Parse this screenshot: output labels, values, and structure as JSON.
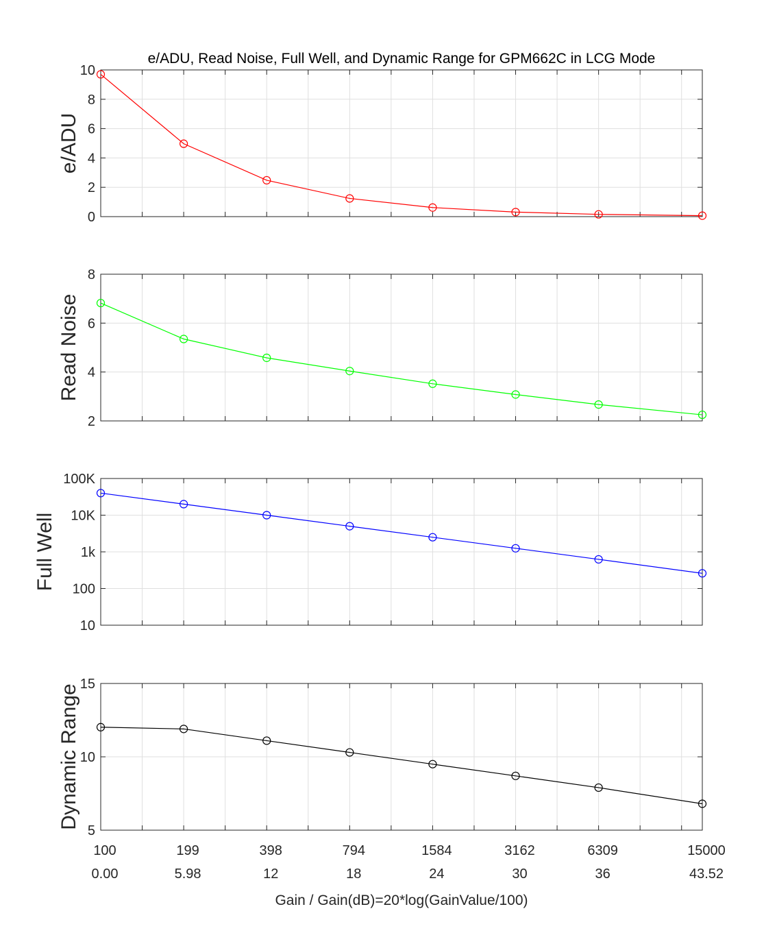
{
  "title": "e/ADU, Read Noise, Full Well, and Dynamic Range for GPM662C in LCG Mode",
  "xlabel": "Gain / Gain(dB)=20*log(GainValue/100)",
  "chart_data": [
    {
      "type": "line",
      "ylabel": "e/ADU",
      "color": "#ff0000",
      "scale": "linear",
      "ylim": [
        0,
        10
      ],
      "yticks": [
        0,
        2,
        4,
        6,
        8,
        10
      ],
      "yticklabels": [
        "0",
        "2",
        "4",
        "6",
        "8",
        "10"
      ],
      "grid": true,
      "gain": [
        100,
        199,
        398,
        794,
        1584,
        3162,
        6309,
        15000
      ],
      "values": [
        9.7,
        4.97,
        2.48,
        1.24,
        0.62,
        0.31,
        0.155,
        0.065
      ]
    },
    {
      "type": "line",
      "ylabel": "Read Noise",
      "color": "#00ff00",
      "scale": "linear",
      "ylim": [
        2,
        8
      ],
      "yticks": [
        2,
        4,
        6,
        8
      ],
      "yticklabels": [
        "2",
        "4",
        "6",
        "8"
      ],
      "grid": true,
      "gain": [
        100,
        199,
        398,
        794,
        1584,
        3162,
        6309,
        15000
      ],
      "values": [
        6.82,
        5.35,
        4.58,
        4.04,
        3.52,
        3.08,
        2.67,
        2.25
      ]
    },
    {
      "type": "line",
      "ylabel": "Full Well",
      "color": "#0000ff",
      "scale": "log",
      "ylim": [
        10,
        100000
      ],
      "yticks": [
        10,
        100,
        1000,
        10000,
        100000
      ],
      "yticklabels": [
        "10",
        "100",
        "1k",
        "10K",
        "100K"
      ],
      "grid": true,
      "gain": [
        100,
        199,
        398,
        794,
        1584,
        3162,
        6309,
        15000
      ],
      "values": [
        40000,
        20000,
        10000,
        5000,
        2500,
        1250,
        625,
        260
      ]
    },
    {
      "type": "line",
      "ylabel": "Dynamic Range",
      "color": "#000000",
      "scale": "linear",
      "ylim": [
        5,
        15
      ],
      "yticks": [
        5,
        10,
        15
      ],
      "yticklabels": [
        "5",
        "10",
        "15"
      ],
      "grid": true,
      "gain": [
        100,
        199,
        398,
        794,
        1584,
        3162,
        6309,
        15000
      ],
      "values": [
        12.02,
        11.9,
        11.1,
        10.3,
        9.5,
        8.7,
        7.9,
        6.8
      ]
    }
  ],
  "xaxis": {
    "positions": [
      0,
      1,
      2,
      3,
      4,
      5,
      6,
      7.25
    ],
    "gain_labels": [
      "100",
      "199",
      "398",
      "794",
      "1584",
      "3162",
      "6309",
      "15000"
    ],
    "db_labels": [
      "0.00",
      "5.98",
      "12",
      "18",
      "24",
      "30",
      "36",
      "43.52"
    ],
    "range": [
      0,
      7.25
    ]
  }
}
